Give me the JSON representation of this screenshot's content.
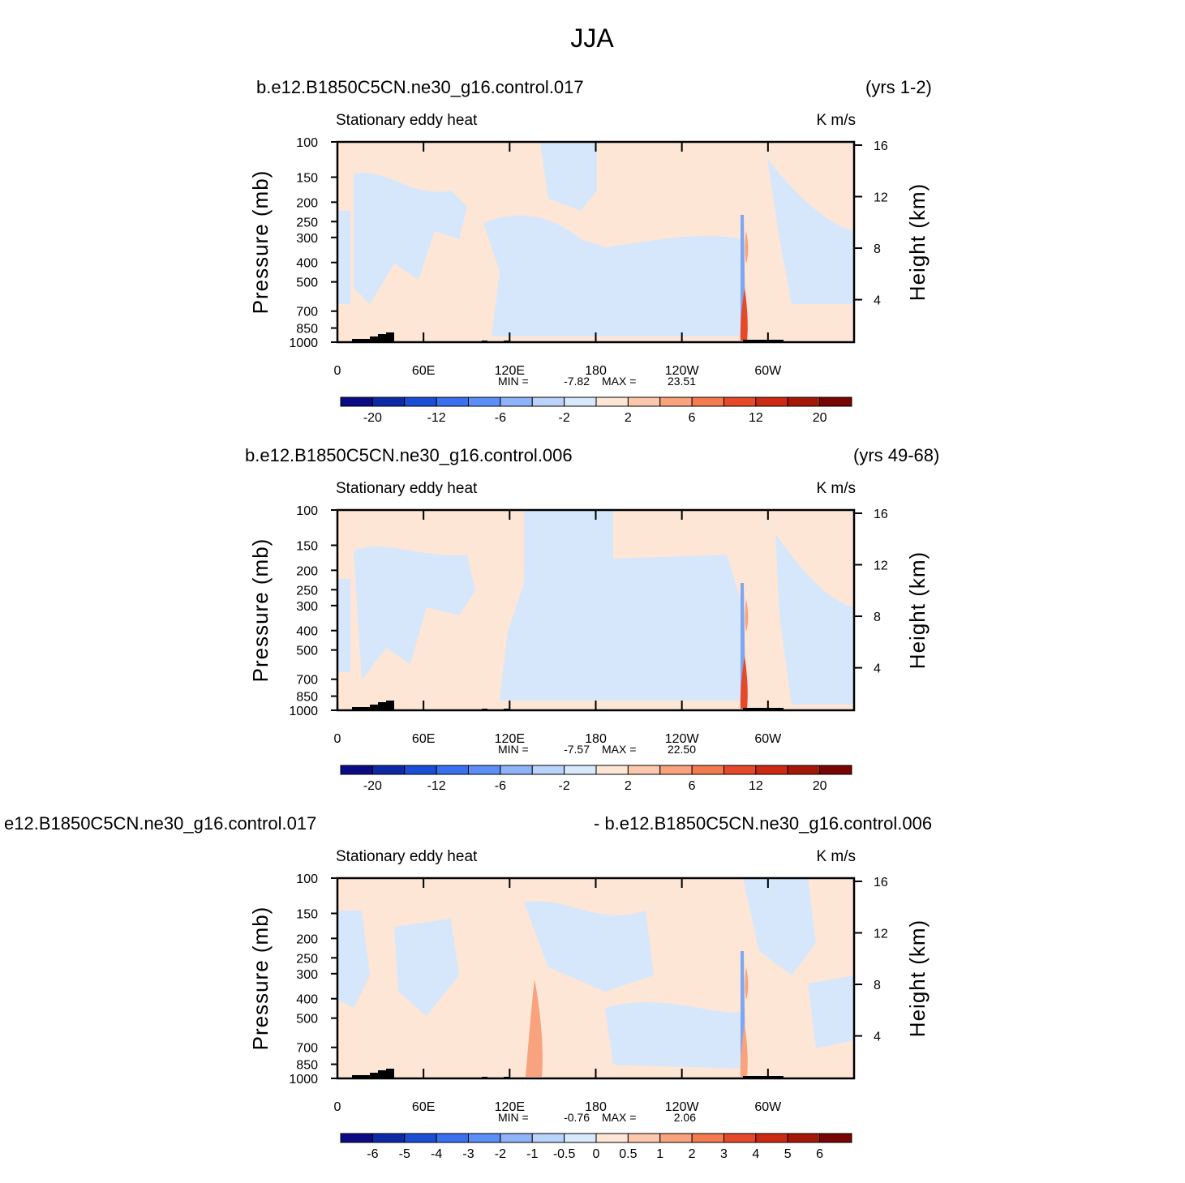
{
  "title": "JJA",
  "chart_data": [
    {
      "type": "contour",
      "title_left": "b.e12.B1850C5CN.ne30_g16.control.017",
      "title_right": "(yrs 1-2)",
      "subtitle_left": "Stationary eddy heat",
      "subtitle_right": "K m/s",
      "ylabel": "Pressure (mb)",
      "y2label": "Height (km)",
      "log_y": true,
      "ylim": [
        1000,
        100
      ],
      "yticks": [
        100,
        150,
        200,
        250,
        300,
        400,
        500,
        700,
        850,
        1000
      ],
      "y2lim": [
        0.7,
        16.25
      ],
      "y2ticks": [
        4,
        8,
        12,
        16
      ],
      "xlim": [
        0,
        360
      ],
      "xticks": [
        0,
        {
          "value": 60,
          "label": "60E"
        },
        {
          "value": 120,
          "label": "120E"
        },
        180,
        {
          "value": 240,
          "label": "120W"
        },
        {
          "value": 300,
          "label": "60W"
        }
      ],
      "min_label": "MIN =",
      "min": -7.82,
      "max_label": "MAX =",
      "max": 23.51,
      "colorbar": {
        "colors": [
          "#0b0b86",
          "#0c2aa6",
          "#1b4ed6",
          "#3a6ff0",
          "#5b8ef6",
          "#8fb3f8",
          "#b9d3fb",
          "#d9e9fc",
          "#fde6d6",
          "#fbc8ad",
          "#f8a27e",
          "#f47a50",
          "#e6492a",
          "#cc2a12",
          "#a51808",
          "#780404"
        ],
        "labels": [
          -20,
          -12,
          -6,
          -2,
          2,
          6,
          12,
          20
        ]
      }
    },
    {
      "type": "contour",
      "title_left": "b.e12.B1850C5CN.ne30_g16.control.006",
      "title_right": "(yrs 49-68)",
      "subtitle_left": "Stationary eddy heat",
      "subtitle_right": "K m/s",
      "ylabel": "Pressure (mb)",
      "y2label": "Height (km)",
      "log_y": true,
      "ylim": [
        1000,
        100
      ],
      "yticks": [
        100,
        150,
        200,
        250,
        300,
        400,
        500,
        700,
        850,
        1000
      ],
      "y2lim": [
        0.7,
        16.25
      ],
      "y2ticks": [
        4,
        8,
        12,
        16
      ],
      "xlim": [
        0,
        360
      ],
      "xticks": [
        0,
        {
          "value": 60,
          "label": "60E"
        },
        {
          "value": 120,
          "label": "120E"
        },
        180,
        {
          "value": 240,
          "label": "120W"
        },
        {
          "value": 300,
          "label": "60W"
        }
      ],
      "min_label": "MIN =",
      "min": -7.57,
      "max_label": "MAX =",
      "max": {
        "value": 22.5,
        "label": "22.50"
      },
      "colorbar": {
        "colors": [
          "#0b0b86",
          "#0c2aa6",
          "#1b4ed6",
          "#3a6ff0",
          "#5b8ef6",
          "#8fb3f8",
          "#b9d3fb",
          "#d9e9fc",
          "#fde6d6",
          "#fbc8ad",
          "#f8a27e",
          "#f47a50",
          "#e6492a",
          "#cc2a12",
          "#a51808",
          "#780404"
        ],
        "labels": [
          -20,
          -12,
          -6,
          -2,
          2,
          6,
          12,
          20
        ]
      }
    },
    {
      "type": "contour",
      "title_left": "e12.B1850C5CN.ne30_g16.control.017",
      "title_right": "- b.e12.B1850C5CN.ne30_g16.control.006",
      "subtitle_left": "Stationary eddy heat",
      "subtitle_right": "K m/s",
      "ylabel": "Pressure (mb)",
      "y2label": "Height (km)",
      "log_y": true,
      "ylim": [
        1000,
        100
      ],
      "yticks": [
        100,
        150,
        200,
        250,
        300,
        400,
        500,
        700,
        850,
        1000
      ],
      "y2lim": [
        0.7,
        16.25
      ],
      "y2ticks": [
        4,
        8,
        12,
        16
      ],
      "xlim": [
        0,
        360
      ],
      "xticks": [
        0,
        {
          "value": 60,
          "label": "60E"
        },
        {
          "value": 120,
          "label": "120E"
        },
        180,
        {
          "value": 240,
          "label": "120W"
        },
        {
          "value": 300,
          "label": "60W"
        }
      ],
      "min_label": "MIN =",
      "min": -0.76,
      "max_label": "MAX =",
      "max": 2.06,
      "colorbar": {
        "colors": [
          "#0b0b86",
          "#0c2aa6",
          "#1b4ed6",
          "#3a6ff0",
          "#5b8ef6",
          "#8fb3f8",
          "#b9d3fb",
          "#d9e9fc",
          "#fde6d6",
          "#fbc8ad",
          "#f8a27e",
          "#f47a50",
          "#e6492a",
          "#cc2a12",
          "#a51808",
          "#780404"
        ],
        "labels": [
          -6,
          -5,
          -4,
          -3,
          -2,
          -1,
          -0.5,
          0,
          0.5,
          1,
          2,
          3,
          4,
          5,
          6
        ]
      }
    }
  ]
}
